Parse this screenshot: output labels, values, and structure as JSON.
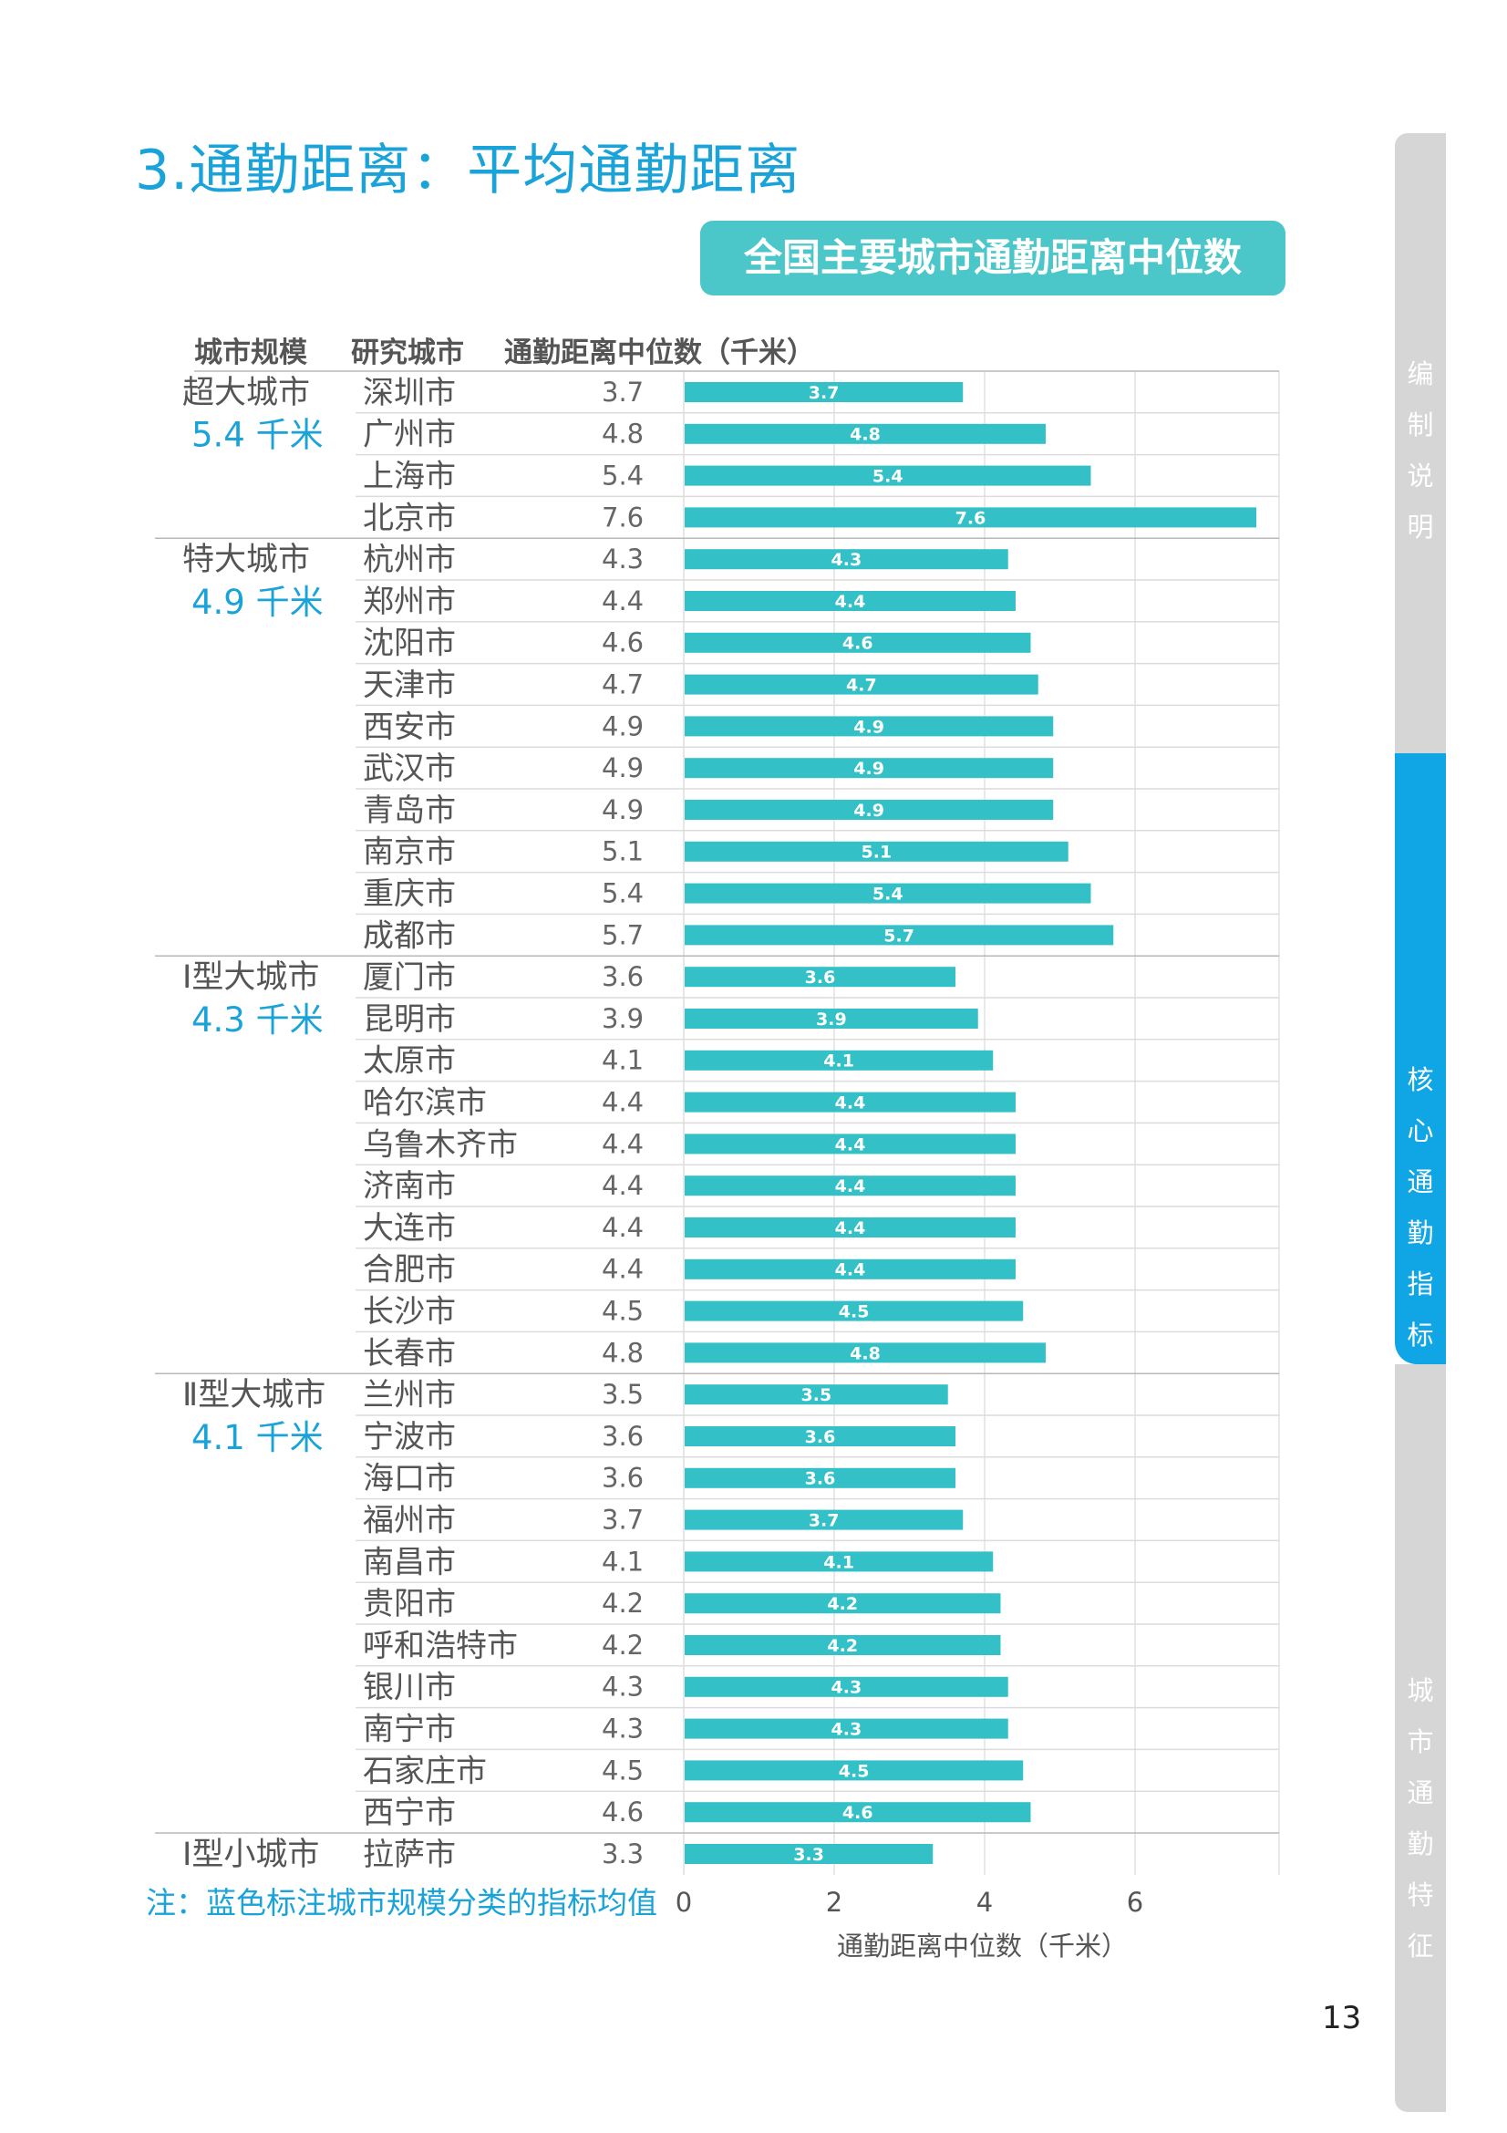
{
  "heading": "3.通勤距离：平均通勤距离",
  "chart_data": {
    "type": "bar",
    "orientation": "horizontal",
    "title": "全国主要城市通勤距离中位数",
    "column_headers": [
      "城市规模",
      "研究城市",
      "通勤距离中位数（千米）"
    ],
    "xlabel": "通勤距离中位数（千米）",
    "xlim": [
      0,
      8
    ],
    "xticks": [
      0,
      2,
      4,
      6
    ],
    "grid": true,
    "groups": [
      {
        "name": "超大城市",
        "mean": "5.4 千米",
        "count": 4
      },
      {
        "name": "特大城市",
        "mean": "4.9 千米",
        "count": 10
      },
      {
        "name": "Ⅰ型大城市",
        "mean": "4.3 千米",
        "count": 10
      },
      {
        "name": "Ⅱ型大城市",
        "mean": "4.1 千米",
        "count": 11
      },
      {
        "name": "Ⅰ型小城市",
        "mean": "",
        "count": 1
      }
    ],
    "cities": [
      "深圳市",
      "广州市",
      "上海市",
      "北京市",
      "杭州市",
      "郑州市",
      "沈阳市",
      "天津市",
      "西安市",
      "武汉市",
      "青岛市",
      "南京市",
      "重庆市",
      "成都市",
      "厦门市",
      "昆明市",
      "太原市",
      "哈尔滨市",
      "乌鲁木齐市",
      "济南市",
      "大连市",
      "合肥市",
      "长沙市",
      "长春市",
      "兰州市",
      "宁波市",
      "海口市",
      "福州市",
      "南昌市",
      "贵阳市",
      "呼和浩特市",
      "银川市",
      "南宁市",
      "石家庄市",
      "西宁市",
      "拉萨市"
    ],
    "values": [
      3.7,
      4.8,
      5.4,
      7.6,
      4.3,
      4.4,
      4.6,
      4.7,
      4.9,
      4.9,
      4.9,
      5.1,
      5.4,
      5.7,
      3.6,
      3.9,
      4.1,
      4.4,
      4.4,
      4.4,
      4.4,
      4.4,
      4.5,
      4.8,
      3.5,
      3.6,
      3.6,
      3.7,
      4.1,
      4.2,
      4.2,
      4.3,
      4.3,
      4.5,
      4.6,
      3.3
    ],
    "bar_color": "#33c1c7"
  },
  "note": "注：蓝色标注城市规模分类的指标均值",
  "page_number": "13",
  "side_tabs": [
    {
      "label": "编制说明",
      "active": false
    },
    {
      "label": "核心通勤指标",
      "active": true
    },
    {
      "label": "城市通勤特征",
      "active": false
    }
  ]
}
